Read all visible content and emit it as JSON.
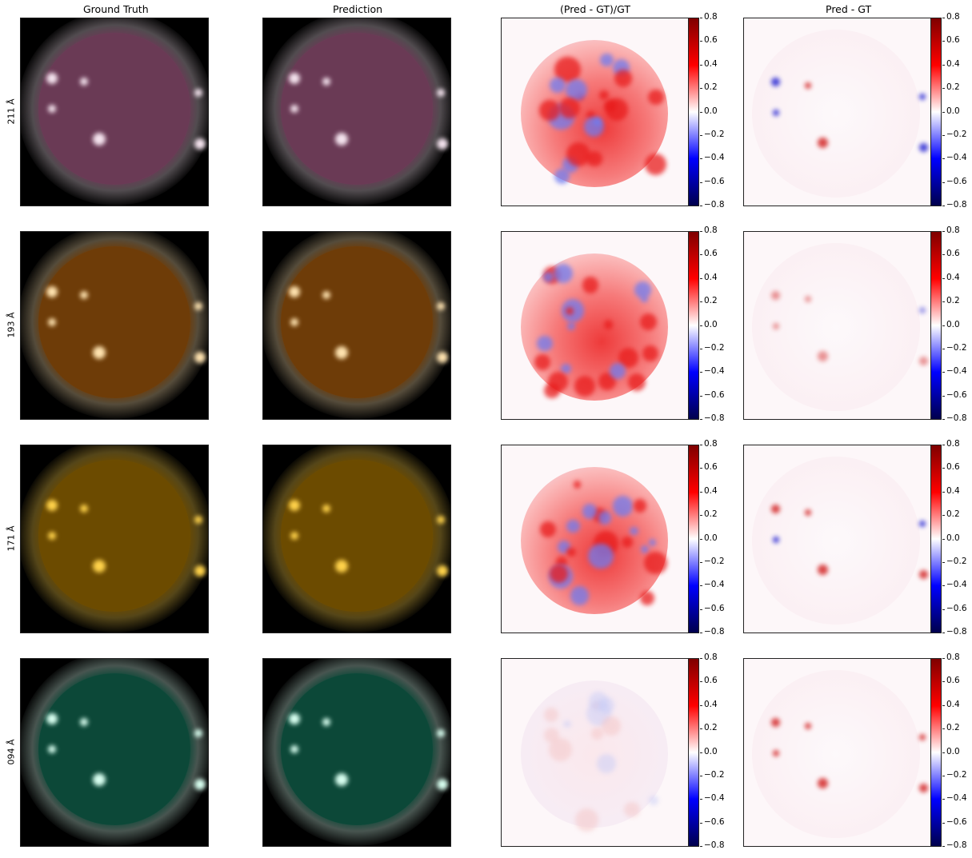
{
  "columns": {
    "ground_truth": "Ground Truth",
    "prediction": "Prediction",
    "relative_error": "(Pred - GT)/GT",
    "difference": "Pred - GT"
  },
  "rows": [
    {
      "label": "211 Å",
      "channel_color": "#6a3a55",
      "highlight": "#f4e3ee"
    },
    {
      "label": "193 Å",
      "channel_color": "#6e3c08",
      "highlight": "#ffe3b0"
    },
    {
      "label": "171 Å",
      "channel_color": "#6c4b00",
      "highlight": "#ffd24a"
    },
    {
      "label": "094 Å",
      "channel_color": "#0c4838",
      "highlight": "#d8fff0"
    }
  ],
  "colorbar": {
    "colormap": "seismic",
    "range": [
      -0.8,
      0.8
    ],
    "ticks": [
      "0.8",
      "0.6",
      "0.4",
      "0.2",
      "0.0",
      "−0.2",
      "−0.4",
      "−0.6",
      "−0.8"
    ]
  }
}
